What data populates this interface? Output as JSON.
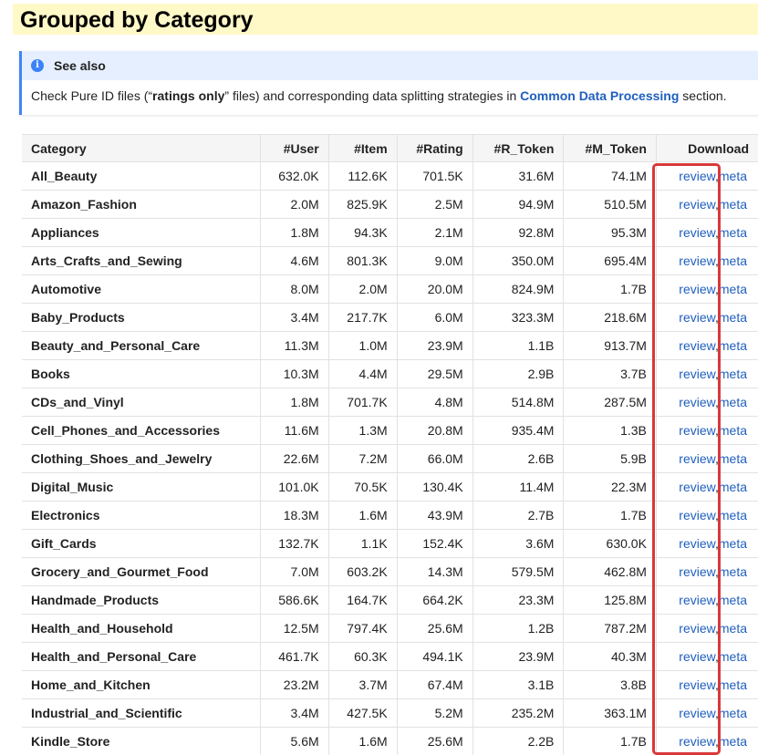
{
  "page": {
    "title": "Grouped by Category"
  },
  "admonition": {
    "title": "See also",
    "text_prefix": "Check Pure ID files (“",
    "text_bold": "ratings only",
    "text_middle": "” files) and corresponding data splitting strategies in ",
    "link_text": "Common Data Processing",
    "text_suffix": " section."
  },
  "table": {
    "headers": [
      "Category",
      "#User",
      "#Item",
      "#Rating",
      "#R_Token",
      "#M_Token",
      "Download"
    ],
    "download_review_label": "review",
    "download_separator": ",",
    "download_meta_label": "meta",
    "rows": [
      [
        "All_Beauty",
        "632.0K",
        "112.6K",
        "701.5K",
        "31.6M",
        "74.1M"
      ],
      [
        "Amazon_Fashion",
        "2.0M",
        "825.9K",
        "2.5M",
        "94.9M",
        "510.5M"
      ],
      [
        "Appliances",
        "1.8M",
        "94.3K",
        "2.1M",
        "92.8M",
        "95.3M"
      ],
      [
        "Arts_Crafts_and_Sewing",
        "4.6M",
        "801.3K",
        "9.0M",
        "350.0M",
        "695.4M"
      ],
      [
        "Automotive",
        "8.0M",
        "2.0M",
        "20.0M",
        "824.9M",
        "1.7B"
      ],
      [
        "Baby_Products",
        "3.4M",
        "217.7K",
        "6.0M",
        "323.3M",
        "218.6M"
      ],
      [
        "Beauty_and_Personal_Care",
        "11.3M",
        "1.0M",
        "23.9M",
        "1.1B",
        "913.7M"
      ],
      [
        "Books",
        "10.3M",
        "4.4M",
        "29.5M",
        "2.9B",
        "3.7B"
      ],
      [
        "CDs_and_Vinyl",
        "1.8M",
        "701.7K",
        "4.8M",
        "514.8M",
        "287.5M"
      ],
      [
        "Cell_Phones_and_Accessories",
        "11.6M",
        "1.3M",
        "20.8M",
        "935.4M",
        "1.3B"
      ],
      [
        "Clothing_Shoes_and_Jewelry",
        "22.6M",
        "7.2M",
        "66.0M",
        "2.6B",
        "5.9B"
      ],
      [
        "Digital_Music",
        "101.0K",
        "70.5K",
        "130.4K",
        "11.4M",
        "22.3M"
      ],
      [
        "Electronics",
        "18.3M",
        "1.6M",
        "43.9M",
        "2.7B",
        "1.7B"
      ],
      [
        "Gift_Cards",
        "132.7K",
        "1.1K",
        "152.4K",
        "3.6M",
        "630.0K"
      ],
      [
        "Grocery_and_Gourmet_Food",
        "7.0M",
        "603.2K",
        "14.3M",
        "579.5M",
        "462.8M"
      ],
      [
        "Handmade_Products",
        "586.6K",
        "164.7K",
        "664.2K",
        "23.3M",
        "125.8M"
      ],
      [
        "Health_and_Household",
        "12.5M",
        "797.4K",
        "25.6M",
        "1.2B",
        "787.2M"
      ],
      [
        "Health_and_Personal_Care",
        "461.7K",
        "60.3K",
        "494.1K",
        "23.9M",
        "40.3M"
      ],
      [
        "Home_and_Kitchen",
        "23.2M",
        "3.7M",
        "67.4M",
        "3.1B",
        "3.8B"
      ],
      [
        "Industrial_and_Scientific",
        "3.4M",
        "427.5K",
        "5.2M",
        "235.2M",
        "363.1M"
      ],
      [
        "Kindle_Store",
        "5.6M",
        "1.6M",
        "25.6M",
        "2.2B",
        "1.7B"
      ]
    ]
  },
  "colors": {
    "title_background": "#fff9c8",
    "admonition_accent": "#4285f4",
    "link": "#1f5fbf",
    "highlight_box": "#d9383a"
  },
  "icons": {
    "admonition": "info-icon"
  }
}
